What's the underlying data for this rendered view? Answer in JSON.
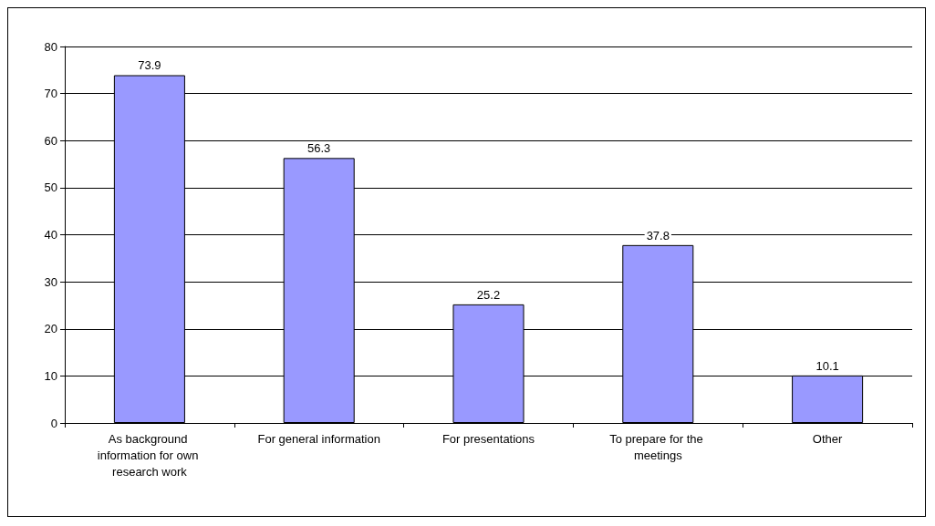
{
  "chart_data": {
    "type": "bar",
    "categories": [
      "As background information for own research work",
      "For general information",
      "For presentations",
      "To prepare for the meetings",
      "Other"
    ],
    "values": [
      73.9,
      56.3,
      25.2,
      37.8,
      10.1
    ],
    "color": "#9999ff",
    "ylim": [
      0,
      80
    ],
    "yticks": [
      0,
      10,
      20,
      30,
      40,
      50,
      60,
      70,
      80
    ],
    "grid": "y",
    "data_labels": true
  }
}
